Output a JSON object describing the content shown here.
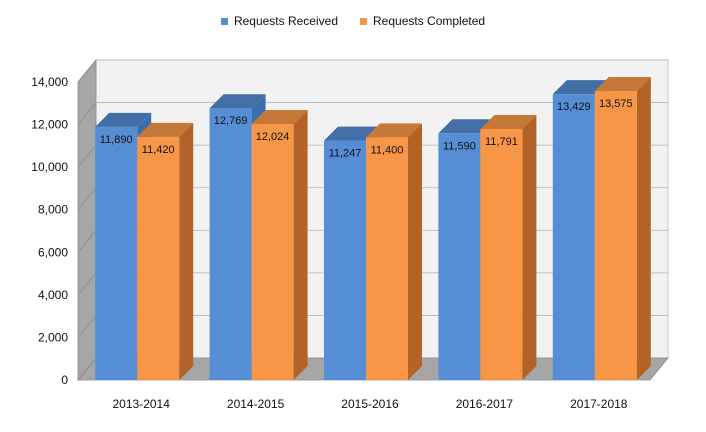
{
  "chart_data": {
    "type": "bar",
    "style": "3d-clustered-column",
    "categories": [
      "2013-2014",
      "2014-2015",
      "2015-2016",
      "2016-2017",
      "2017-2018"
    ],
    "series": [
      {
        "name": "Requests Received",
        "values": [
          11890,
          12769,
          11247,
          11590,
          13429
        ],
        "labels": [
          "11,890",
          "12,769",
          "11,247",
          "11,590",
          "13,429"
        ],
        "color": "#558ED5"
      },
      {
        "name": "Requests Completed",
        "values": [
          11420,
          12024,
          11400,
          11791,
          13575
        ],
        "labels": [
          "11,420",
          "12,024",
          "11,400",
          "11,791",
          "13,575"
        ],
        "color": "#F79646"
      }
    ],
    "ylim": [
      0,
      14000
    ],
    "yticks": [
      0,
      2000,
      4000,
      6000,
      8000,
      10000,
      12000,
      14000
    ],
    "ytick_labels": [
      "0",
      "2,000",
      "4,000",
      "6,000",
      "8,000",
      "10,000",
      "12,000",
      "14,000"
    ],
    "legend_position": "top-center",
    "grid": true,
    "title": "",
    "xlabel": "",
    "ylabel": ""
  }
}
